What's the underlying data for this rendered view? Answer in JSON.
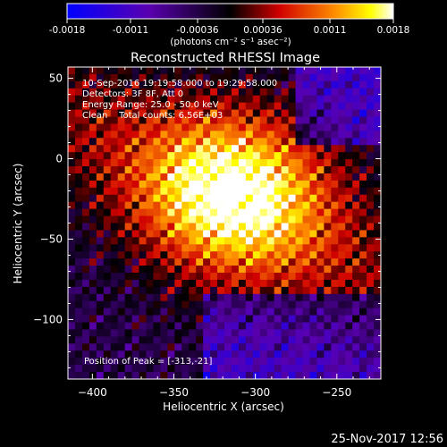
{
  "colorbar": {
    "tick_labels": [
      "-0.0018",
      "-0.0011",
      "-0.00036",
      "0.00036",
      "0.0011",
      "0.0018"
    ],
    "tick_values": [
      -0.0018,
      -0.0011,
      -0.00036,
      0.00036,
      0.0011,
      0.0018
    ],
    "range": [
      -0.0018,
      0.0018
    ],
    "units": "(photons cm⁻² s⁻¹ asec⁻²)"
  },
  "chart_data": {
    "type": "heatmap",
    "title": "Reconstructed RHESSI Image",
    "xlabel": "Heliocentric X (arcsec)",
    "ylabel": "Heliocentric Y (arcsec)",
    "xlim": [
      -415,
      -223
    ],
    "ylim": [
      -137,
      57
    ],
    "x_ticks": [
      -400,
      -350,
      -300,
      -250
    ],
    "y_ticks": [
      50,
      0,
      -50,
      -100
    ],
    "x_tick_labels": [
      "−400",
      "−350",
      "−300",
      "−250"
    ],
    "y_tick_labels": [
      "50",
      "0",
      "−50",
      "−100"
    ],
    "annotations": [
      "10-Sep-2016 19:19:58.000 to 19:29:58.000",
      "Detectors: 3F 8F, Att 0",
      "Energy Range: 25.0 - 50.0 keV",
      "Clean    Total counts: 6.56E+03"
    ],
    "peak_label": "Position of Peak = [-313,-21]",
    "peak": [
      -313,
      -21
    ],
    "timestamp": "25-Nov-2017 12:56",
    "colormap": [
      "#0000ff",
      "#000000",
      "#ff0000",
      "#ffff00",
      "#ffffff"
    ]
  }
}
